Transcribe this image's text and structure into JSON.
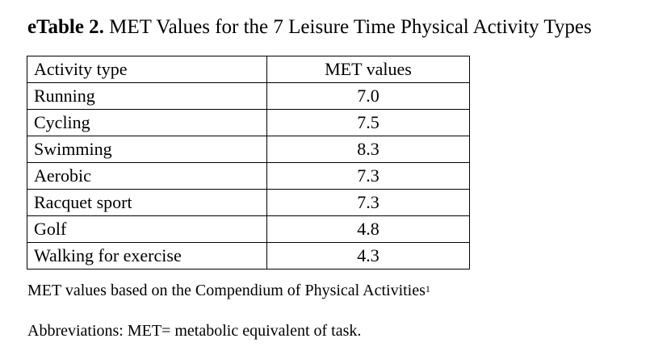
{
  "title": {
    "label": "eTable 2.",
    "text": " MET Values for the 7 Leisure Time Physical Activity Types"
  },
  "table": {
    "headers": [
      "Activity type",
      "MET values"
    ],
    "rows": [
      {
        "activity": "Running",
        "met": "7.0"
      },
      {
        "activity": "Cycling",
        "met": "7.5"
      },
      {
        "activity": "Swimming",
        "met": "8.3"
      },
      {
        "activity": "Aerobic",
        "met": "7.3"
      },
      {
        "activity": "Racquet sport",
        "met": "7.3"
      },
      {
        "activity": "Golf",
        "met": "4.8"
      },
      {
        "activity": "Walking for exercise",
        "met": "4.3"
      }
    ]
  },
  "footnote": {
    "text": "MET values based on the Compendium of Physical Activities",
    "superscript": "1"
  },
  "abbreviations": "Abbreviations: MET= metabolic equivalent of task."
}
